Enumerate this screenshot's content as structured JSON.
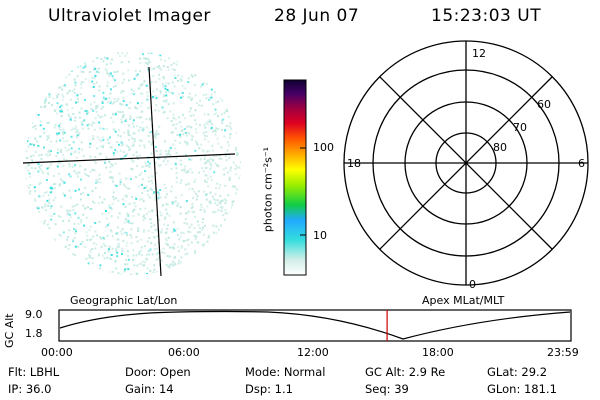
{
  "header": {
    "title": "Ultraviolet Imager",
    "date": "28 Jun 07",
    "time": "15:23:03 UT"
  },
  "colorbar": {
    "unit_label": "photon cm⁻²s⁻¹",
    "ticks": [
      "100",
      "10"
    ]
  },
  "polar": {
    "mlt_labels": [
      "12",
      "18",
      "6",
      "0"
    ],
    "lat_labels": [
      "60",
      "70",
      "80"
    ]
  },
  "timeline": {
    "left_title": "Geographic Lat/Lon",
    "right_title": "Apex MLat/MLT",
    "axis_label": "GC Alt",
    "y_ticks": [
      "9.0",
      "1.8"
    ],
    "x_ticks": [
      "00:00",
      "06:00",
      "12:00",
      "18:00",
      "23:59"
    ],
    "current_time_marker_hours": 15.38
  },
  "info": {
    "filter": "Flt: LBHL",
    "door": "Door: Open",
    "mode": "Mode: Normal",
    "gc_alt": "GC Alt: 2.9 Re",
    "glat": "GLat:   29.2",
    "ip": "IP: 36.0",
    "gain": "Gain: 14",
    "dsp": "Dsp:     1.1",
    "seq": "Seq: 39",
    "glon": "GLon: 181.1"
  },
  "colors": {
    "marker": "#cc0000",
    "speckle_cyan": "#33dddd",
    "speckle_pale": "#bfe8e0"
  }
}
